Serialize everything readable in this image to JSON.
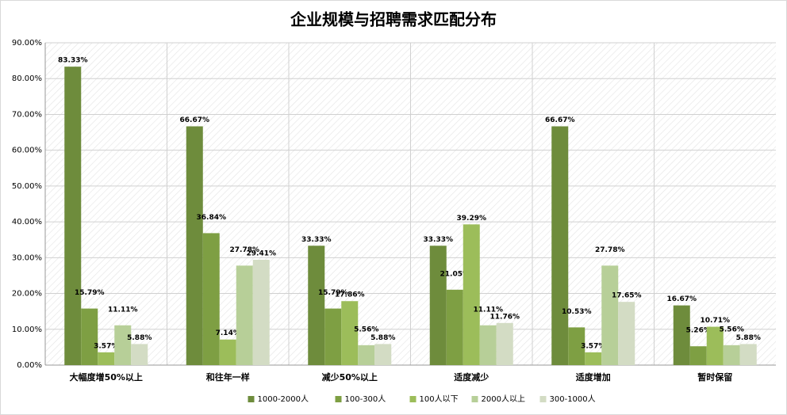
{
  "chart_data": {
    "type": "bar",
    "title": "企业规模与招聘需求匹配分布",
    "categories": [
      "大幅度增50%以上",
      "和往年一样",
      "减少50%以上",
      "适度减少",
      "适度增加",
      "暂时保留"
    ],
    "series": [
      {
        "name": "1000-2000人",
        "color": "#6e8c3c",
        "values": [
          83.33,
          66.67,
          33.33,
          33.33,
          66.67,
          16.67
        ],
        "value_labels": [
          "83.33%",
          "66.67%",
          "33.33%",
          "33.33%",
          "66.67%",
          "16.67%"
        ]
      },
      {
        "name": "100-300人",
        "color": "#7e9f43",
        "values": [
          15.79,
          36.84,
          15.79,
          21.05,
          10.53,
          5.26
        ],
        "value_labels": [
          "15.79%",
          "36.84%",
          "15.79%",
          "21.05%",
          "10.53%",
          "5.26%"
        ]
      },
      {
        "name": "100人以下",
        "color": "#9cbd5a",
        "values": [
          3.57,
          7.14,
          17.86,
          39.29,
          3.57,
          10.71
        ],
        "value_labels": [
          "3.57%",
          "7.14%",
          "17.86%",
          "39.29%",
          "3.57%",
          "10.71%"
        ]
      },
      {
        "name": "2000人以上",
        "color": "#b7cf98",
        "values": [
          11.11,
          27.78,
          5.56,
          11.11,
          27.78,
          5.56
        ],
        "value_labels": [
          "11.11%",
          "27.78%",
          "5.56%",
          "11.11%",
          "27.78%",
          "5.56%"
        ]
      },
      {
        "name": "300-1000人",
        "color": "#d3dcc4",
        "values": [
          5.88,
          29.41,
          5.88,
          11.76,
          17.65,
          5.88
        ],
        "value_labels": [
          "5.88%",
          "29.41%",
          "5.88%",
          "11.76%",
          "17.65%",
          "5.88%"
        ]
      }
    ],
    "ylim": [
      0,
      90
    ],
    "yticks": [
      {
        "value": 0,
        "label": "0.00%"
      },
      {
        "value": 10,
        "label": "10.00%"
      },
      {
        "value": 20,
        "label": "20.00%"
      },
      {
        "value": 30,
        "label": "30.00%"
      },
      {
        "value": 40,
        "label": "40.00%"
      },
      {
        "value": 50,
        "label": "50.00%"
      },
      {
        "value": 60,
        "label": "60.00%"
      },
      {
        "value": 70,
        "label": "70.00%"
      },
      {
        "value": 80,
        "label": "80.00%"
      },
      {
        "value": 90,
        "label": "90.00%"
      }
    ],
    "grid": true,
    "legend": "bottom"
  }
}
